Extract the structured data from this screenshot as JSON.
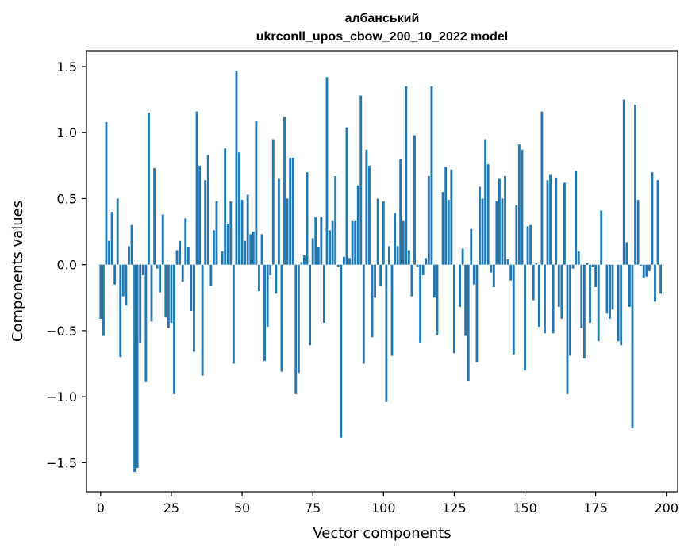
{
  "chart_data": {
    "type": "bar",
    "title": "албанський",
    "subtitle": "ukrconll_upos_cbow_200_10_2022 model",
    "xlabel": "Vector components",
    "ylabel": "Components values",
    "xlim": [
      -5,
      204
    ],
    "ylim": [
      -1.72,
      1.62
    ],
    "xticks": [
      0,
      25,
      50,
      75,
      100,
      125,
      150,
      175,
      200
    ],
    "yticks": [
      -1.5,
      -1.0,
      -0.5,
      0.0,
      0.5,
      1.0,
      1.5
    ],
    "ytick_labels": [
      "−1.5",
      "−1.0",
      "−0.5",
      "0.0",
      "0.5",
      "1.0",
      "1.5"
    ],
    "grid": false,
    "bar_color": "#1f77b4",
    "values": [
      -0.41,
      -0.54,
      1.08,
      0.18,
      0.4,
      -0.15,
      0.5,
      -0.7,
      -0.24,
      -0.31,
      0.14,
      0.3,
      -1.57,
      -1.54,
      -0.59,
      -0.08,
      -0.89,
      1.15,
      -0.43,
      0.73,
      -0.03,
      -0.21,
      0.38,
      -0.4,
      -0.48,
      -0.44,
      -0.98,
      0.11,
      0.18,
      -0.13,
      0.35,
      0.13,
      -0.35,
      -0.66,
      1.16,
      0.75,
      -0.84,
      0.64,
      0.83,
      -0.16,
      0.26,
      0.48,
      0.0,
      0.1,
      0.88,
      0.31,
      0.48,
      -0.75,
      1.47,
      0.85,
      0.49,
      0.18,
      0.53,
      0.23,
      0.25,
      1.09,
      -0.2,
      0.23,
      -0.73,
      -0.47,
      -0.08,
      0.95,
      -0.22,
      0.65,
      -0.81,
      1.12,
      0.5,
      0.81,
      0.81,
      -0.98,
      -0.82,
      0.02,
      0.07,
      0.7,
      -0.61,
      0.2,
      0.36,
      0.13,
      0.36,
      -0.44,
      1.42,
      0.26,
      0.33,
      0.67,
      -0.02,
      -1.31,
      0.06,
      1.04,
      0.05,
      0.33,
      0.33,
      0.6,
      1.28,
      -0.75,
      0.87,
      0.75,
      -0.55,
      -0.25,
      0.5,
      -0.16,
      0.48,
      -1.04,
      0.14,
      -0.69,
      0.39,
      0.14,
      0.8,
      0.33,
      1.35,
      0.11,
      -0.24,
      0.98,
      -0.02,
      -0.59,
      -0.08,
      0.05,
      0.67,
      1.35,
      -0.25,
      -0.53,
      0.0,
      0.55,
      0.74,
      0.49,
      0.72,
      -0.67,
      0.0,
      -0.32,
      0.12,
      -0.54,
      -0.88,
      0.27,
      -0.15,
      -0.74,
      0.59,
      0.5,
      0.95,
      0.76,
      -0.06,
      -0.17,
      0.48,
      0.65,
      0.5,
      0.67,
      0.04,
      -0.12,
      -0.68,
      0.45,
      0.91,
      0.87,
      -0.8,
      0.29,
      0.3,
      -0.27,
      0.01,
      -0.47,
      1.16,
      -0.52,
      0.64,
      0.68,
      -0.52,
      0.66,
      -0.32,
      -0.41,
      0.62,
      -0.98,
      -0.69,
      -0.03,
      0.71,
      0.1,
      -0.48,
      -0.71,
      0.01,
      -0.44,
      -0.02,
      -0.17,
      -0.58,
      0.41,
      0.0,
      -0.37,
      -0.41,
      -0.34,
      0.0,
      -0.58,
      -0.61,
      1.25,
      0.17,
      -0.32,
      -1.24,
      1.21,
      0.49,
      -0.01,
      -0.1,
      -0.09,
      -0.05,
      0.7,
      -0.28,
      0.64,
      -0.22
    ]
  }
}
